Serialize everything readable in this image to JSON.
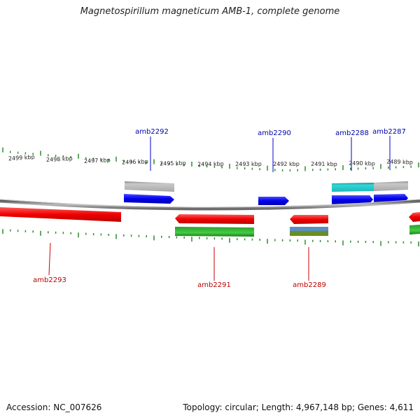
{
  "title": "Magnetospirillum magneticum AMB-1, complete genome",
  "footer": {
    "accession": "Accession: NC_007626",
    "summary": "Topology: circular; Length: 4,967,148 bp; Genes: 4,611"
  },
  "colors": {
    "forward_gene": "#0000ee",
    "reverse_gene": "#ee0000",
    "forward_label": "#0000aa",
    "reverse_label": "#bb0000",
    "backbone": "#888888",
    "ticks": "#2e8b2e",
    "cds_gray": "#b8b8b8",
    "cds_cyan": "#22c8c8",
    "cds_green": "#33bb33",
    "cds_steelblue": "#5a8fc0",
    "cds_olive": "#6b8e23"
  },
  "scale_labels": [
    "2499 kbp",
    "2498 kbp",
    "2497 kbp",
    "2496 kbp",
    "2495 kbp",
    "2494 kbp",
    "2493 kbp",
    "2492 kbp",
    "2491 kbp",
    "2490 kbp",
    "2489 kbp"
  ],
  "forward_genes": [
    "amb2292",
    "amb2290",
    "amb2288",
    "amb2287"
  ],
  "reverse_genes": [
    "amb2293",
    "amb2291",
    "amb2289"
  ]
}
